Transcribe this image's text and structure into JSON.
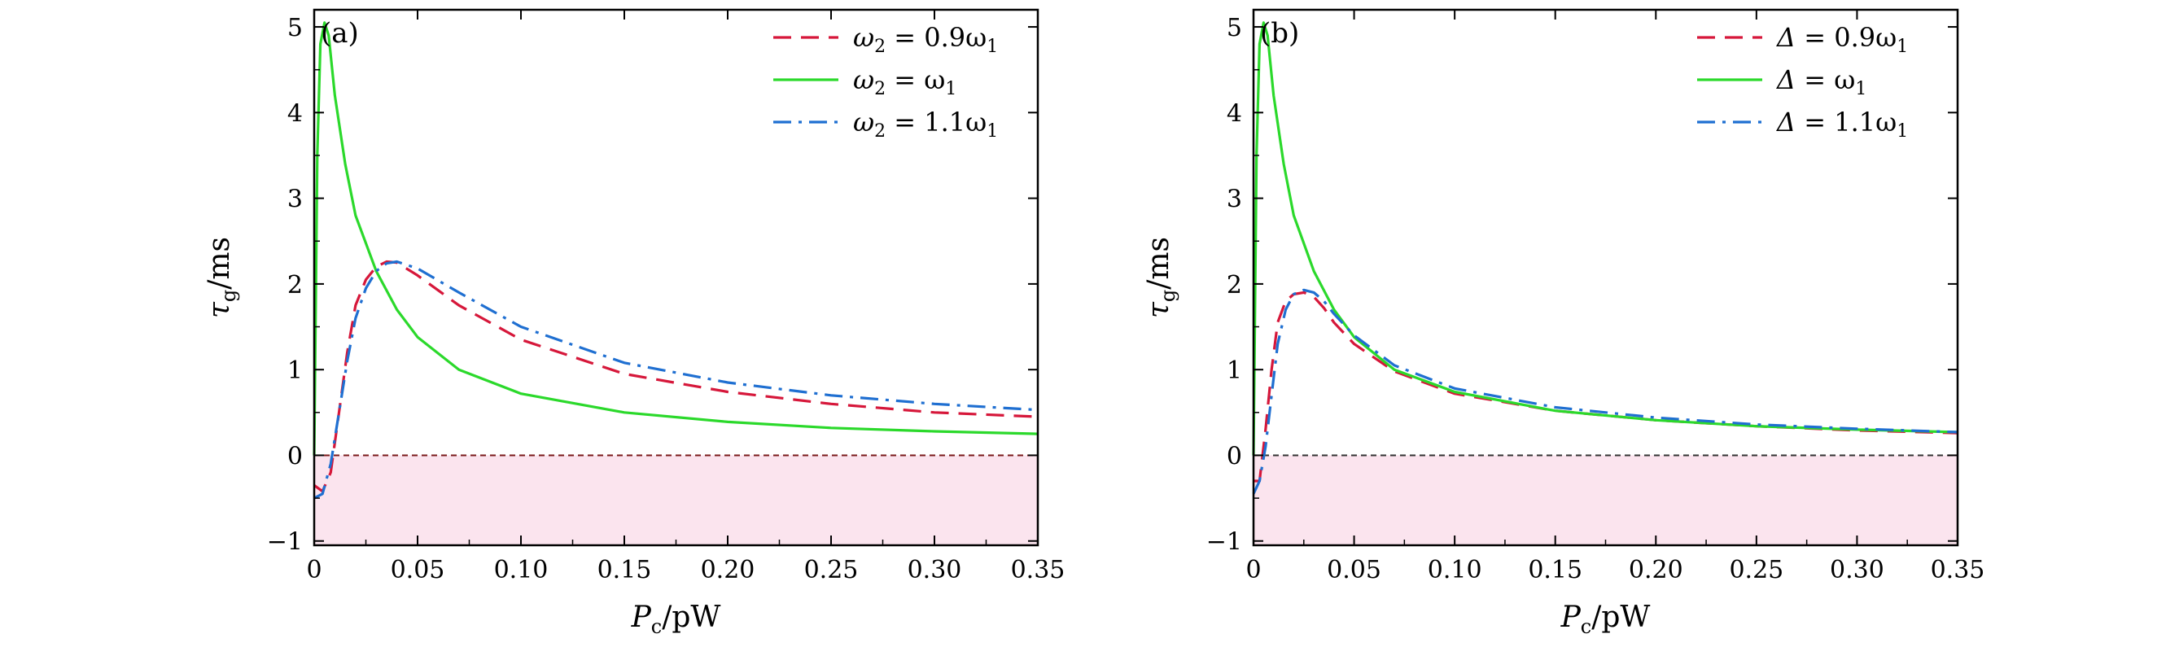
{
  "chart_data": [
    {
      "type": "line",
      "panel_label": "(a)",
      "xlabel_main": "P",
      "xlabel_sub": "c",
      "xlabel_unit": "/pW",
      "ylabel_main": "τ",
      "ylabel_sub": "g",
      "ylabel_unit": "/ms",
      "xlim": [
        0,
        0.35
      ],
      "ylim": [
        -1.05,
        5.2
      ],
      "xticks": [
        0,
        0.05,
        0.1,
        0.15,
        0.2,
        0.25,
        0.3,
        0.35
      ],
      "xtick_labels": [
        "0",
        "0.05",
        "0.10",
        "0.15",
        "0.20",
        "0.25",
        "0.30",
        "0.35"
      ],
      "yticks": [
        -1,
        0,
        1,
        2,
        3,
        4,
        5
      ],
      "ytick_labels": [
        "−1",
        "0",
        "1",
        "2",
        "3",
        "4",
        "5"
      ],
      "shaded_region": {
        "y_from": -1.05,
        "y_to": 0,
        "color": "#fbe4ee"
      },
      "zero_line": {
        "y": 0,
        "color": "#7a1a1a"
      },
      "series": [
        {
          "name": "ω2 = 0.9ω1",
          "legend_pre": "ω",
          "legend_sub": "2",
          "legend_mid": " = 0.9ω",
          "legend_sub2": "1",
          "color": "#d6173a",
          "style": "dash",
          "x": [
            0,
            0.004,
            0.008,
            0.012,
            0.016,
            0.02,
            0.025,
            0.03,
            0.035,
            0.04,
            0.05,
            0.07,
            0.1,
            0.15,
            0.2,
            0.25,
            0.3,
            0.35
          ],
          "y": [
            -0.35,
            -0.42,
            -0.2,
            0.5,
            1.2,
            1.75,
            2.05,
            2.2,
            2.26,
            2.25,
            2.1,
            1.75,
            1.35,
            0.95,
            0.74,
            0.6,
            0.5,
            0.45
          ]
        },
        {
          "name": "ω2 = ω1",
          "legend_pre": "ω",
          "legend_sub": "2",
          "legend_mid": " = ω",
          "legend_sub2": "1",
          "color": "#2bd92b",
          "style": "solid",
          "x": [
            0,
            0.0015,
            0.003,
            0.005,
            0.007,
            0.01,
            0.015,
            0.02,
            0.03,
            0.04,
            0.05,
            0.07,
            0.1,
            0.15,
            0.2,
            0.25,
            0.3,
            0.35
          ],
          "y": [
            0,
            3.5,
            4.8,
            5.05,
            4.9,
            4.2,
            3.4,
            2.8,
            2.15,
            1.7,
            1.38,
            1.0,
            0.72,
            0.5,
            0.39,
            0.32,
            0.28,
            0.25
          ]
        },
        {
          "name": "ω2 = 1.1ω1",
          "legend_pre": "ω",
          "legend_sub": "2",
          "legend_mid": " = 1.1ω",
          "legend_sub2": "1",
          "color": "#1f6fd1",
          "style": "dashdot",
          "x": [
            0,
            0.004,
            0.008,
            0.012,
            0.016,
            0.02,
            0.025,
            0.03,
            0.035,
            0.04,
            0.05,
            0.07,
            0.1,
            0.15,
            0.2,
            0.25,
            0.3,
            0.35
          ],
          "y": [
            -0.5,
            -0.45,
            -0.1,
            0.5,
            1.1,
            1.6,
            1.95,
            2.15,
            2.24,
            2.26,
            2.18,
            1.9,
            1.5,
            1.08,
            0.85,
            0.7,
            0.6,
            0.53
          ]
        }
      ]
    },
    {
      "type": "line",
      "panel_label": "(b)",
      "xlabel_main": "P",
      "xlabel_sub": "c",
      "xlabel_unit": "/pW",
      "ylabel_main": "τ",
      "ylabel_sub": "g",
      "ylabel_unit": "/ms",
      "xlim": [
        0,
        0.35
      ],
      "ylim": [
        -1.05,
        5.2
      ],
      "xticks": [
        0,
        0.05,
        0.1,
        0.15,
        0.2,
        0.25,
        0.3,
        0.35
      ],
      "xtick_labels": [
        "0",
        "0.05",
        "0.10",
        "0.15",
        "0.20",
        "0.25",
        "0.30",
        "0.35"
      ],
      "yticks": [
        -1,
        0,
        1,
        2,
        3,
        4,
        5
      ],
      "ytick_labels": [
        "−1",
        "0",
        "1",
        "2",
        "3",
        "4",
        "5"
      ],
      "shaded_region": {
        "y_from": -1.05,
        "y_to": 0,
        "color": "#fbe4ee"
      },
      "zero_line": {
        "y": 0,
        "color": "#333333"
      },
      "series": [
        {
          "name": "Δ = 0.9ω1",
          "legend_pre": "Δ",
          "legend_sub": "",
          "legend_mid": " = 0.9ω",
          "legend_sub2": "1",
          "color": "#d6173a",
          "style": "dash",
          "x": [
            0,
            0.003,
            0.006,
            0.009,
            0.012,
            0.016,
            0.02,
            0.025,
            0.03,
            0.035,
            0.04,
            0.05,
            0.07,
            0.1,
            0.15,
            0.2,
            0.25,
            0.3,
            0.35
          ],
          "y": [
            -0.3,
            -0.3,
            0.3,
            1.0,
            1.55,
            1.8,
            1.88,
            1.9,
            1.85,
            1.72,
            1.55,
            1.3,
            0.98,
            0.72,
            0.52,
            0.41,
            0.34,
            0.29,
            0.26
          ]
        },
        {
          "name": "Δ = ω1",
          "legend_pre": "Δ",
          "legend_sub": "",
          "legend_mid": " = ω",
          "legend_sub2": "1",
          "color": "#2bd92b",
          "style": "solid",
          "x": [
            0,
            0.0015,
            0.003,
            0.005,
            0.007,
            0.01,
            0.015,
            0.02,
            0.03,
            0.04,
            0.05,
            0.07,
            0.1,
            0.15,
            0.2,
            0.25,
            0.3,
            0.35
          ],
          "y": [
            0,
            3.5,
            4.8,
            5.05,
            4.9,
            4.2,
            3.4,
            2.8,
            2.15,
            1.7,
            1.38,
            1.0,
            0.74,
            0.52,
            0.41,
            0.34,
            0.3,
            0.27
          ]
        },
        {
          "name": "Δ = 1.1ω1",
          "legend_pre": "Δ",
          "legend_sub": "",
          "legend_mid": " = 1.1ω",
          "legend_sub2": "1",
          "color": "#1f6fd1",
          "style": "dashdot",
          "x": [
            0,
            0.003,
            0.006,
            0.009,
            0.012,
            0.016,
            0.02,
            0.025,
            0.03,
            0.035,
            0.04,
            0.05,
            0.07,
            0.1,
            0.15,
            0.2,
            0.25,
            0.3,
            0.35
          ],
          "y": [
            -0.45,
            -0.3,
            0.1,
            0.7,
            1.3,
            1.7,
            1.88,
            1.93,
            1.9,
            1.8,
            1.65,
            1.4,
            1.05,
            0.78,
            0.56,
            0.44,
            0.36,
            0.31,
            0.27
          ]
        }
      ]
    }
  ]
}
